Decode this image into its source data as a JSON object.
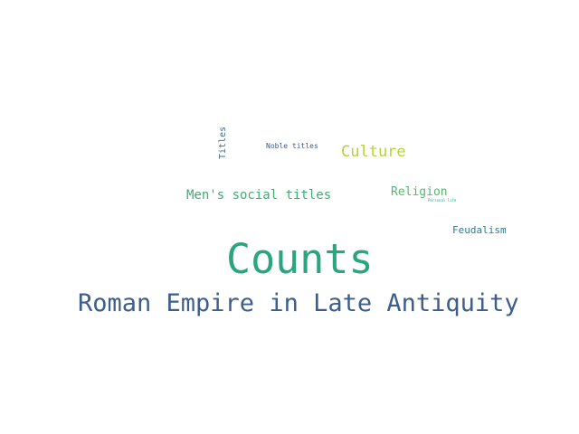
{
  "words": {
    "counts": {
      "text": "Counts",
      "color": "#2aa57f"
    },
    "roman": {
      "text": "Roman Empire in Late Antiquity",
      "color": "#3e5e8a"
    },
    "mens": {
      "text": "Men's social titles",
      "color": "#3cae72"
    },
    "culture": {
      "text": "Culture",
      "color": "#b4d632"
    },
    "religion": {
      "text": "Religion",
      "color": "#4cbc6c"
    },
    "feudal": {
      "text": "Feudalism",
      "color": "#2f7a8e"
    },
    "noble": {
      "text": "Noble titles",
      "color": "#3d5c8c"
    },
    "titles": {
      "text": "Titles",
      "color": "#3b6a8d"
    },
    "personal": {
      "text": "Personal life",
      "color": "#29a689"
    }
  }
}
